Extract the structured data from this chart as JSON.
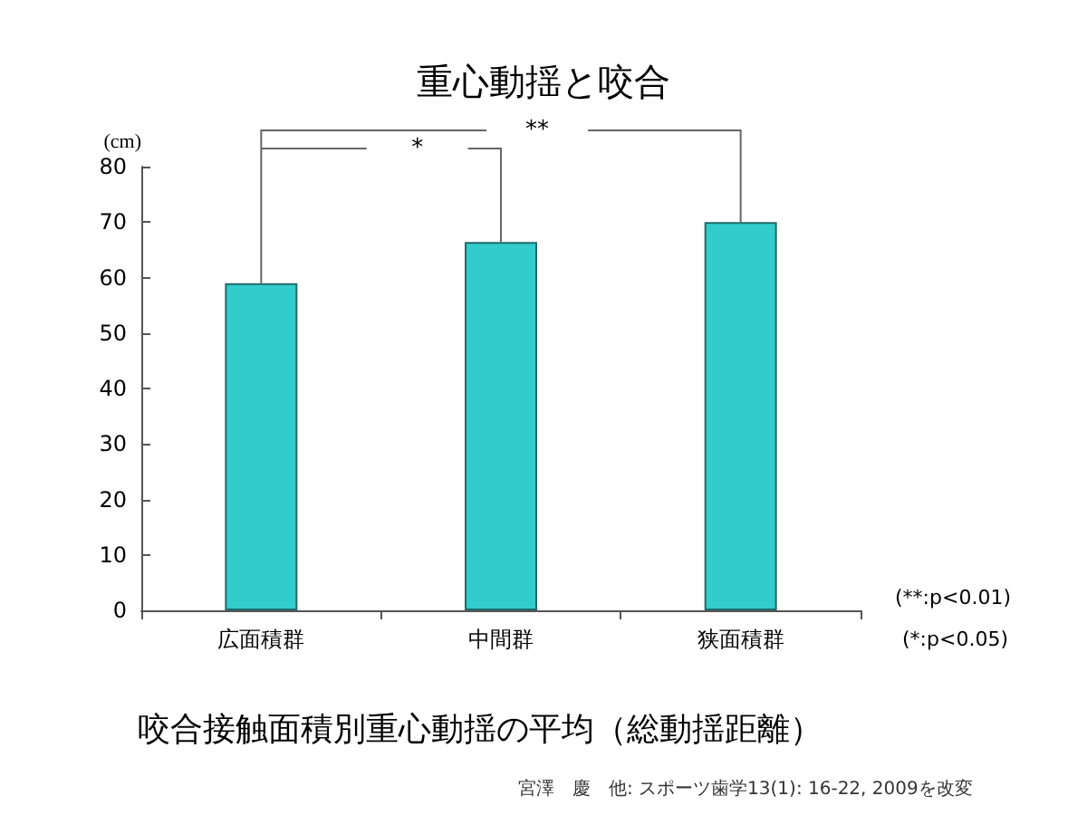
{
  "chart_data": {
    "type": "bar",
    "title": "重心動揺と咬合",
    "subtitle": "咬合接触面積別重心動揺の平均（総動揺距離）",
    "ylabel": "(cm)",
    "categories": [
      "広面積群",
      "中間群",
      "狭面積群"
    ],
    "values": [
      59,
      66.4,
      70
    ],
    "color": "#33cccc",
    "ylim": [
      0,
      80
    ],
    "yticks": [
      0,
      10,
      20,
      30,
      40,
      50,
      60,
      70,
      80
    ],
    "grid": false,
    "annotations": [
      "**",
      "*",
      "(**:p<0.01)",
      "(*:p<0.05)",
      "宮澤　慶　他: スポーツ歯学13(1): 16-22, 2009を改変"
    ]
  }
}
